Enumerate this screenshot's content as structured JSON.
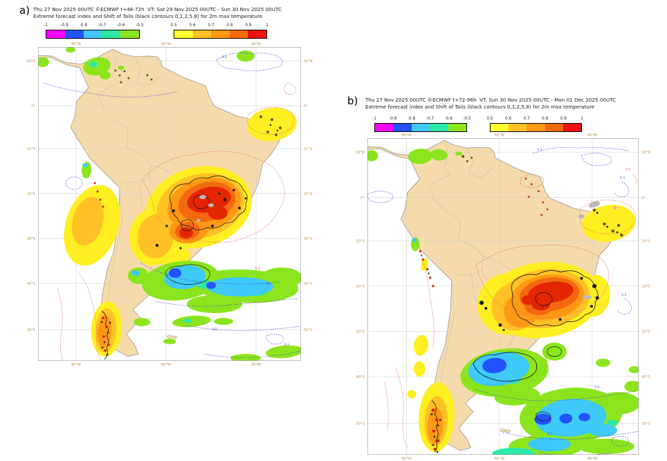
{
  "figure": {
    "description": "Extreme forecast index maps for 2m max temperature over South America",
    "panels_count": "2"
  },
  "panels": [
    {
      "label": "a)",
      "title_line1": "Thu 27 Nov 2025 00UTC ©ECMWF t+48-72h  VT: Sat 29 Nov 2025 00UTC - Sun 30 Nov 2025 00UTC",
      "title_line2": "Extreme forecast index and Shift of Tails (black contours 0,1,2,5,8) for 2m max temperature"
    },
    {
      "label": "b)",
      "title_line1": "Thu 27 Nov 2025 00UTC ©ECMWF t+72-96h  VT: Sun 30 Nov 2025 00UTC - Mon 01 Dec 2025 00UTC",
      "title_line2": "Extreme forecast index and Shift of Tails (black contours 0,1,2,5,8) for 2m max temperature"
    }
  ],
  "legend": {
    "negative": {
      "labels": [
        "-1",
        "-0.9",
        "-0.8",
        "-0.7",
        "-0.6",
        "-0.5"
      ],
      "colors": [
        "#ff00ff",
        "#2253ff",
        "#3ec9f8",
        "#2ee8a8",
        "#8ce51c"
      ]
    },
    "positive": {
      "labels": [
        "0.5",
        "0.6",
        "0.7",
        "0.8",
        "0.9",
        "1"
      ],
      "colors": [
        "#ffff2e",
        "#ffc125",
        "#ff9915",
        "#f4690f",
        "#ee1111"
      ]
    }
  },
  "axes": {
    "lon": [
      "80°W",
      "60°W",
      "40°W"
    ],
    "lat": [
      "10°N",
      "0°",
      "10°S",
      "20°S",
      "30°S",
      "40°S",
      "50°S"
    ]
  },
  "annotations": {
    "efi_contour_label": "0.3"
  },
  "colors": {
    "land": "#f5dbab",
    "ocean": "#ffffff",
    "warm_core": "#e52500",
    "cool_core": "#2253ff",
    "grid": "#cccccc"
  }
}
